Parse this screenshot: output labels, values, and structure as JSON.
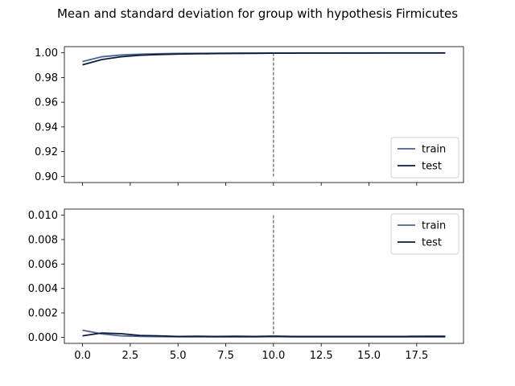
{
  "chart_data": {
    "title": "Mean and standard deviation for group with hypothesis Firmicutes",
    "colors": {
      "train": "#4a6196",
      "test": "#0c1a3d",
      "marker": "#444444"
    },
    "x": [
      0,
      1,
      2,
      3,
      4,
      5,
      6,
      7,
      8,
      9,
      10,
      11,
      12,
      13,
      14,
      15,
      16,
      17,
      18,
      19
    ],
    "x_ticks": [
      0.0,
      2.5,
      5.0,
      7.5,
      10.0,
      12.5,
      15.0,
      17.5
    ],
    "x_tick_labels": [
      "0.0",
      "2.5",
      "5.0",
      "7.5",
      "10.0",
      "12.5",
      "15.0",
      "17.5"
    ],
    "xlim": [
      -0.95,
      19.95
    ],
    "panels": [
      {
        "type": "line",
        "ylim": [
          0.895,
          1.005
        ],
        "y_ticks": [
          0.9,
          0.92,
          0.94,
          0.96,
          0.98,
          1.0
        ],
        "y_tick_labels": [
          "0.90",
          "0.92",
          "0.94",
          "0.96",
          "0.98",
          "1.00"
        ],
        "vline": {
          "x": 10,
          "ymin": 0.9,
          "ymax": 1.0
        },
        "legend": "bottom-right",
        "show_x_tick_labels": false,
        "series": [
          {
            "name": "train",
            "values": [
              0.993,
              0.9968,
              0.9982,
              0.9989,
              0.9993,
              0.9995,
              0.9996,
              0.9997,
              0.9998,
              0.9998,
              0.9999,
              0.9999,
              0.9999,
              0.9999,
              0.99995,
              0.99995,
              0.99995,
              0.99996,
              0.99996,
              0.99997
            ]
          },
          {
            "name": "test",
            "values": [
              0.9903,
              0.9945,
              0.9968,
              0.998,
              0.9986,
              0.999,
              0.9992,
              0.9994,
              0.9995,
              0.9996,
              0.9997,
              0.9997,
              0.9998,
              0.9998,
              0.9998,
              0.9998,
              0.9999,
              0.9999,
              0.9999,
              0.9999
            ]
          }
        ]
      },
      {
        "type": "line",
        "ylim": [
          -0.0005,
          0.0105
        ],
        "y_ticks": [
          0.0,
          0.002,
          0.004,
          0.006,
          0.008,
          0.01
        ],
        "y_tick_labels": [
          "0.000",
          "0.002",
          "0.004",
          "0.006",
          "0.008",
          "0.010"
        ],
        "vline": {
          "x": 10,
          "ymin": 0.0,
          "ymax": 0.01
        },
        "legend": "top-right",
        "show_x_tick_labels": true,
        "series": [
          {
            "name": "train",
            "values": [
              0.00058,
              0.00028,
              0.00012,
              7e-05,
              5e-05,
              4e-05,
              4e-05,
              3e-05,
              3e-05,
              3e-05,
              5e-05,
              3e-05,
              3e-05,
              3e-05,
              3e-05,
              3e-05,
              3e-05,
              3e-05,
              3e-05,
              3e-05
            ]
          },
          {
            "name": "test",
            "values": [
              0.00012,
              0.00035,
              0.0003,
              0.00015,
              0.00012,
              7e-05,
              8e-05,
              7e-05,
              8e-05,
              7e-05,
              9e-05,
              7e-05,
              7e-05,
              7e-05,
              7e-05,
              7e-05,
              7e-05,
              7e-05,
              8e-05,
              8e-05
            ]
          }
        ]
      }
    ]
  }
}
